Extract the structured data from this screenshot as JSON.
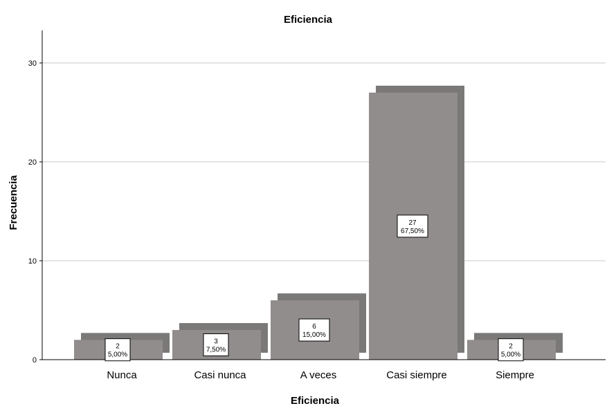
{
  "chart_data": {
    "type": "bar",
    "title": "Eficiencia",
    "xlabel": "Eficiencia",
    "ylabel": "Frecuencia",
    "categories": [
      "Nunca",
      "Casi nunca",
      "A veces",
      "Casi siempre",
      "Siempre"
    ],
    "values": [
      2,
      3,
      6,
      27,
      2
    ],
    "percent_labels": [
      "5,00%",
      "7,50%",
      "15,00%",
      "67,50%",
      "5,00%"
    ],
    "yticks": [
      0,
      10,
      20,
      30
    ],
    "ylim": [
      0,
      33.3
    ],
    "grid": true,
    "bar_color": "#918d8c",
    "shadow_color": "#7a7978",
    "gridline_color": "#c8c8c8"
  }
}
